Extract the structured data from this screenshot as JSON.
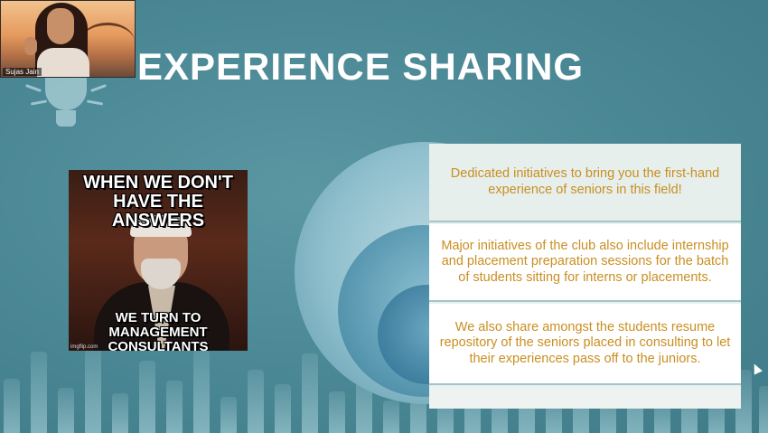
{
  "webcam": {
    "participant_name": "Sujas Jain"
  },
  "slide": {
    "title": "EXPERIENCE SHARING",
    "meme": {
      "top_text": "WHEN WE DON'T HAVE THE ANSWERS",
      "bottom_text": "WE TURN TO MANAGEMENT CONSULTANTS",
      "watermark": "imgflip.com"
    },
    "points": [
      "Dedicated initiatives to bring you the first-hand experience of seniors in this field!",
      "Major initiatives of the club also include internship and placement preparation sessions for the batch of students sitting for interns or placements.",
      "We also share amongst the students resume repository of the seniors placed in consulting to let their experiences pass off to the juniors."
    ]
  },
  "colors": {
    "background": "#4a8794",
    "title": "#ffffff",
    "point_text": "#c98f22"
  }
}
